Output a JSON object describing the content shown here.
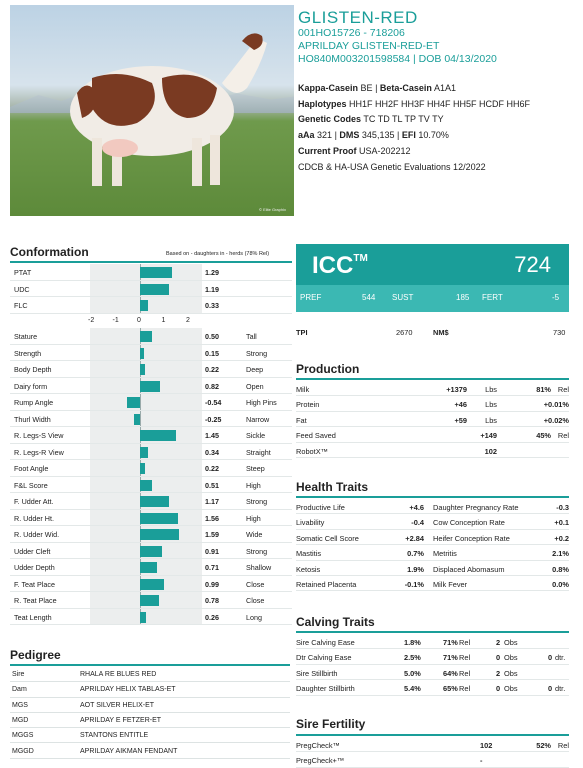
{
  "header": {
    "name": "GLISTEN-RED",
    "line1": "001HO15726 - 718206",
    "line2": "APRILDAY GLISTEN-RED-ET",
    "line3": "HO840M003201598584 | DOB 04/13/2020"
  },
  "photo": {
    "credit": "© Elite Graphix"
  },
  "info": {
    "kappa_label": "Kappa-Casein",
    "kappa_val": "BE",
    "beta_label": "Beta-Casein",
    "beta_val": "A1A1",
    "haplo_label": "Haplotypes",
    "haplo_val": "HH1F HH2F HH3F HH4F HH5F HCDF HH6F",
    "genetic_label": "Genetic Codes",
    "genetic_val": "TC TD TL TP TV TY",
    "aaa_label": "aAa",
    "aaa_val": "321",
    "dms_label": "DMS",
    "dms_val": "345,135",
    "efi_label": "EFI",
    "efi_val": "10.70%",
    "proof_label": "Current Proof",
    "proof_val": "USA-202212",
    "evals": "CDCB & HA-USA Genetic Evaluations 12/2022"
  },
  "conformation": {
    "title": "Conformation",
    "note": "Based on - daughters in - herds (78% Rel)",
    "axis": [
      "-2",
      "-1",
      "0",
      "1",
      "2"
    ],
    "top_rows": [
      {
        "label": "PTAT",
        "value": 1.29,
        "text": "1.29",
        "desc": ""
      },
      {
        "label": "UDC",
        "value": 1.19,
        "text": "1.19",
        "desc": ""
      },
      {
        "label": "FLC",
        "value": 0.33,
        "text": "0.33",
        "desc": ""
      }
    ],
    "rows": [
      {
        "label": "Stature",
        "value": 0.5,
        "text": "0.50",
        "desc": "Tall"
      },
      {
        "label": "Strength",
        "value": 0.15,
        "text": "0.15",
        "desc": "Strong"
      },
      {
        "label": "Body Depth",
        "value": 0.22,
        "text": "0.22",
        "desc": "Deep"
      },
      {
        "label": "Dairy form",
        "value": 0.82,
        "text": "0.82",
        "desc": "Open"
      },
      {
        "label": "Rump Angle",
        "value": -0.54,
        "text": "-0.54",
        "desc": "High Pins"
      },
      {
        "label": "Thurl Width",
        "value": -0.25,
        "text": "-0.25",
        "desc": "Narrow"
      },
      {
        "label": "R. Legs-S View",
        "value": 1.45,
        "text": "1.45",
        "desc": "Sickle"
      },
      {
        "label": "R. Legs-R View",
        "value": 0.34,
        "text": "0.34",
        "desc": "Straight"
      },
      {
        "label": "Foot Angle",
        "value": 0.22,
        "text": "0.22",
        "desc": "Steep"
      },
      {
        "label": "F&L Score",
        "value": 0.51,
        "text": "0.51",
        "desc": "High"
      },
      {
        "label": "F. Udder Att.",
        "value": 1.17,
        "text": "1.17",
        "desc": "Strong"
      },
      {
        "label": "R. Udder Ht.",
        "value": 1.56,
        "text": "1.56",
        "desc": "High"
      },
      {
        "label": "R. Udder Wid.",
        "value": 1.59,
        "text": "1.59",
        "desc": "Wide"
      },
      {
        "label": "Udder Cleft",
        "value": 0.91,
        "text": "0.91",
        "desc": "Strong"
      },
      {
        "label": "Udder Depth",
        "value": 0.71,
        "text": "0.71",
        "desc": "Shallow"
      },
      {
        "label": "F. Teat Place",
        "value": 0.99,
        "text": "0.99",
        "desc": "Close"
      },
      {
        "label": "R. Teat Place",
        "value": 0.78,
        "text": "0.78",
        "desc": "Close"
      },
      {
        "label": "Teat Length",
        "value": 0.26,
        "text": "0.26",
        "desc": "Long"
      }
    ]
  },
  "pedigree": {
    "title": "Pedigree",
    "rows": [
      {
        "k": "Sire",
        "v": "RHALA RE BLUES RED"
      },
      {
        "k": "Dam",
        "v": "APRILDAY HELIX TABLAS-ET"
      },
      {
        "k": "MGS",
        "v": "AOT SILVER HELIX-ET"
      },
      {
        "k": "MGD",
        "v": "APRILDAY E FETZER-ET"
      },
      {
        "k": "MGGS",
        "v": "STANTONS ENTITLE"
      },
      {
        "k": "MGGD",
        "v": "APRILDAY AIKMAN FENDANT"
      }
    ]
  },
  "icc": {
    "title": "ICC",
    "tm": "TM",
    "value": "724",
    "pref_label": "PREF",
    "pref": "544",
    "sust_label": "SUST",
    "sust": "185",
    "fert_label": "FERT",
    "fert": "-5"
  },
  "tpi": {
    "tpi_label": "TPI",
    "tpi": "2670",
    "nm_label": "NM$",
    "nm": "730"
  },
  "production": {
    "title": "Production",
    "rows": [
      {
        "k": "Milk",
        "v": "+1379",
        "u": "Lbs",
        "r": "81%",
        "ru": "Rel"
      },
      {
        "k": "Protein",
        "v": "+46",
        "u": "Lbs",
        "r": "+0.01%",
        "ru": ""
      },
      {
        "k": "Fat",
        "v": "+59",
        "u": "Lbs",
        "r": "+0.02%",
        "ru": ""
      },
      {
        "k": "Feed Saved",
        "v": "+149",
        "u": "",
        "r": "45%",
        "ru": "Rel"
      },
      {
        "k": "RobotX™",
        "v": "102",
        "u": "",
        "r": "",
        "ru": ""
      }
    ]
  },
  "health": {
    "title": "Health Traits",
    "rows": [
      {
        "k1": "Productive Life",
        "v1": "+4.6",
        "k2": "Daughter Pregnancy Rate",
        "v2": "-0.3"
      },
      {
        "k1": "Livability",
        "v1": "-0.4",
        "k2": "Cow Conception Rate",
        "v2": "+0.1"
      },
      {
        "k1": "Somatic Cell Score",
        "v1": "+2.84",
        "k2": "Heifer Conception Rate",
        "v2": "+0.2"
      },
      {
        "k1": "Mastitis",
        "v1": "0.7%",
        "k2": "Metritis",
        "v2": "2.1%"
      },
      {
        "k1": "Ketosis",
        "v1": "1.9%",
        "k2": "Displaced Abomasum",
        "v2": "0.8%"
      },
      {
        "k1": "Retained Placenta",
        "v1": "-0.1%",
        "k2": "Milk Fever",
        "v2": "0.0%"
      }
    ]
  },
  "calving": {
    "title": "Calving Traits",
    "rows": [
      {
        "k": "Sire Calving Ease",
        "v": "1.8%",
        "r": "71%",
        "ru": "Rel",
        "o": "2",
        "ou": "Obs",
        "d": "",
        "du": ""
      },
      {
        "k": "Dtr Calving Ease",
        "v": "2.5%",
        "r": "71%",
        "ru": "Rel",
        "o": "0",
        "ou": "Obs",
        "d": "0",
        "du": "dtr."
      },
      {
        "k": "Sire Stillbirth",
        "v": "5.0%",
        "r": "64%",
        "ru": "Rel",
        "o": "2",
        "ou": "Obs",
        "d": "",
        "du": ""
      },
      {
        "k": "Daughter Stillbirth",
        "v": "5.4%",
        "r": "65%",
        "ru": "Rel",
        "o": "0",
        "ou": "Obs",
        "d": "0",
        "du": "dtr."
      }
    ]
  },
  "fertility": {
    "title": "Sire Fertility",
    "rows": [
      {
        "k": "PregCheck™",
        "v": "102",
        "r": "52%",
        "ru": "Rel"
      },
      {
        "k": "PregCheck+™",
        "v": "-",
        "r": "",
        "ru": ""
      }
    ]
  },
  "colors": {
    "accent": "#1a9e99",
    "accent_light": "#3bb8b3"
  }
}
